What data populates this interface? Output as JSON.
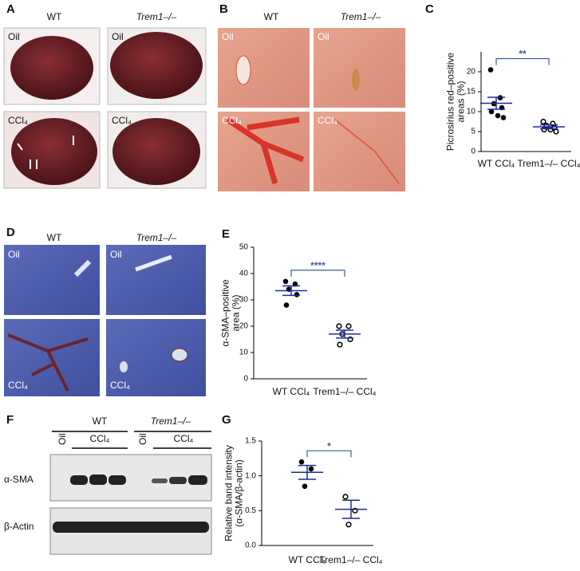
{
  "panels": {
    "a": {
      "letter": "A",
      "columns": [
        "WT",
        "Trem1–/–"
      ],
      "rows": [
        "Oil",
        "CCl₄"
      ]
    },
    "b": {
      "letter": "B",
      "columns": [
        "WT",
        "Trem1–/–"
      ],
      "rows": [
        "Oil",
        "CCl₄"
      ]
    },
    "c": {
      "letter": "C"
    },
    "d": {
      "letter": "D",
      "columns": [
        "WT",
        "Trem1–/–"
      ],
      "rows": [
        "Oil",
        "CCl₄"
      ]
    },
    "e": {
      "letter": "E"
    },
    "f": {
      "letter": "F",
      "groups": [
        "WT",
        "Trem1–/–"
      ],
      "lanes": [
        "Oil",
        "CCl₄",
        "Oil",
        "CCl₄"
      ],
      "blots": [
        "α-SMA",
        "β-Actin"
      ]
    },
    "g": {
      "letter": "G"
    }
  },
  "chart_data": [
    {
      "type": "strip",
      "ylabel": [
        "Picrosirius red–positive",
        "areas (%)"
      ],
      "categories": [
        "WT CCl₄",
        "Trem1–/– CCl₄"
      ],
      "values": [
        [
          20.5,
          13.5,
          12,
          11,
          10,
          9,
          8.5
        ],
        [
          7.5,
          7,
          6.5,
          6,
          5.5,
          5.5,
          5
        ]
      ],
      "mean": [
        12.1,
        6.2
      ],
      "sem": [
        1.5,
        0.5
      ],
      "markers": [
        "filled",
        "open"
      ],
      "ylim": [
        0,
        25
      ],
      "yticks": [
        0,
        5,
        10,
        15,
        20
      ],
      "annotation": "**",
      "color": "#1f2a9a",
      "annotation_color": "#3b5b9a"
    },
    {
      "type": "strip",
      "ylabel": [
        "α-SMA–positive",
        "area (%)"
      ],
      "categories": [
        "WT CCl₄",
        "Trem1–/– CCl₄"
      ],
      "values": [
        [
          37,
          36,
          34,
          32,
          28
        ],
        [
          20,
          20,
          17,
          15,
          13
        ]
      ],
      "mean": [
        33.5,
        17
      ],
      "sem": [
        1.8,
        1.5
      ],
      "markers": [
        "filled",
        "open"
      ],
      "ylim": [
        0,
        50
      ],
      "yticks": [
        0,
        10,
        20,
        30,
        40,
        50
      ],
      "annotation": "****",
      "color": "#1f2a9a",
      "annotation_color": "#3b5b9a"
    },
    {
      "type": "strip",
      "ylabel": [
        "Relative band intensity",
        "(α-SMA/β-actin)"
      ],
      "categories": [
        "WT CCl₄",
        "Trem1–/– CCl₄"
      ],
      "values": [
        [
          1.2,
          1.1,
          0.85
        ],
        [
          0.7,
          0.5,
          0.3
        ]
      ],
      "mean": [
        1.05,
        0.52
      ],
      "sem": [
        0.1,
        0.13
      ],
      "markers": [
        "filled",
        "open"
      ],
      "ylim": [
        0,
        1.5
      ],
      "yticks": [
        {
          "value": 0,
          "label": "0.0"
        },
        0.5,
        {
          "value": 1,
          "label": "1.0"
        },
        1.5
      ],
      "annotation": "*",
      "color": "#1f2a9a",
      "annotation_color": "#3b5b9a"
    }
  ]
}
